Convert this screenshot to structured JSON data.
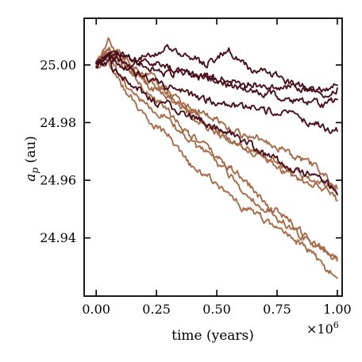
{
  "chart_data": {
    "type": "line",
    "title": "",
    "xlabel": "time (years)",
    "ylabel": "a_p (au)",
    "ylabel_var": "a",
    "ylabel_sub": "p",
    "ylabel_unit": " (au)",
    "x_scale_multiplier": "×10",
    "x_scale_exponent": "6",
    "xlim": [
      -0.05,
      1.02
    ],
    "ylim": [
      24.9198,
      25.0162
    ],
    "x_ticks": [
      0.0,
      0.25,
      0.5,
      0.75,
      1.0
    ],
    "x_tick_labels": [
      "0.00",
      "0.25",
      "0.50",
      "0.75",
      "1.00"
    ],
    "y_ticks": [
      24.94,
      24.96,
      24.98,
      25.0
    ],
    "y_tick_labels": [
      "24.94",
      "24.96",
      "24.98",
      "25.00"
    ],
    "grid": false,
    "x": [
      0.0,
      0.05,
      0.1,
      0.15,
      0.2,
      0.25,
      0.3,
      0.35,
      0.4,
      0.45,
      0.5,
      0.55,
      0.6,
      0.65,
      0.7,
      0.75,
      0.8,
      0.85,
      0.9,
      0.95,
      1.0
    ],
    "series": [
      {
        "color": "#a86b48",
        "values": [
          25.0,
          25.004,
          25.0,
          24.997,
          24.992,
          24.988,
          24.984,
          24.979,
          24.975,
          24.972,
          24.968,
          24.965,
          24.961,
          24.957,
          24.952,
          24.949,
          24.946,
          24.942,
          24.938,
          24.935,
          24.933
        ]
      },
      {
        "color": "#a86b48",
        "values": [
          25.0,
          25.002,
          24.993,
          24.988,
          24.982,
          24.979,
          24.975,
          24.969,
          24.964,
          24.962,
          24.959,
          24.955,
          24.951,
          24.949,
          24.946,
          24.943,
          24.941,
          24.938,
          24.934,
          24.929,
          24.926
        ]
      },
      {
        "color": "#a86b48",
        "values": [
          25.0,
          25.006,
          25.002,
          24.999,
          24.996,
          24.993,
          24.992,
          24.987,
          24.985,
          24.983,
          24.981,
          24.978,
          24.976,
          24.975,
          24.974,
          24.972,
          24.969,
          24.967,
          24.965,
          24.962,
          24.955
        ]
      },
      {
        "color": "#a86b48",
        "values": [
          25.0,
          25.006,
          25.002,
          24.998,
          24.994,
          24.991,
          24.988,
          24.985,
          24.982,
          24.979,
          24.977,
          24.974,
          24.972,
          24.97,
          24.968,
          24.965,
          24.962,
          24.96,
          24.958,
          24.956,
          24.953
        ]
      },
      {
        "color": "#a86b48",
        "values": [
          25.0,
          25.004,
          24.996,
          24.99,
          24.986,
          24.983,
          24.982,
          24.976,
          24.972,
          24.97,
          24.966,
          24.962,
          24.957,
          24.953,
          24.95,
          24.947,
          24.944,
          24.941,
          24.938,
          24.936,
          24.932
        ]
      },
      {
        "color": "#a86b48",
        "values": [
          25.0,
          25.008,
          25.003,
          25.0,
          24.997,
          24.994,
          24.99,
          24.987,
          24.984,
          24.98,
          24.978,
          24.975,
          24.972,
          24.97,
          24.968,
          24.966,
          24.964,
          24.962,
          24.96,
          24.959,
          24.957
        ]
      },
      {
        "color": "#4a0f1c",
        "values": [
          25.0,
          25.004,
          25.004,
          25.002,
          25.003,
          25.004,
          25.006,
          25.004,
          25.003,
          25.0,
          25.003,
          25.005,
          25.001,
          24.998,
          24.997,
          24.996,
          24.994,
          24.993,
          24.991,
          24.99,
          24.992
        ]
      },
      {
        "color": "#4a0f1c",
        "values": [
          25.0,
          25.003,
          25.002,
          25.0,
          25.0,
          24.998,
          24.997,
          24.998,
          24.996,
          24.996,
          24.995,
          24.993,
          24.992,
          24.991,
          24.99,
          24.989,
          24.988,
          24.987,
          24.987,
          24.986,
          24.988
        ]
      },
      {
        "color": "#4a0f1c",
        "values": [
          25.0,
          25.004,
          25.003,
          25.002,
          25.001,
          25.0,
          24.999,
          24.998,
          24.997,
          24.996,
          24.995,
          24.995,
          24.994,
          24.993,
          24.993,
          24.992,
          24.993,
          24.992,
          24.991,
          24.991,
          24.993
        ]
      },
      {
        "color": "#4a0f1c",
        "values": [
          25.0,
          25.003,
          25.0,
          24.998,
          24.996,
          24.994,
          24.992,
          24.991,
          24.989,
          24.988,
          24.987,
          24.986,
          24.985,
          24.985,
          24.984,
          24.984,
          24.983,
          24.981,
          24.98,
          24.978,
          24.977
        ]
      },
      {
        "color": "#4a0f1c",
        "values": [
          25.0,
          25.001,
          24.995,
          24.993,
          24.99,
          24.987,
          24.986,
          24.984,
          24.982,
          24.981,
          24.978,
          24.977,
          24.974,
          24.972,
          24.969,
          24.967,
          24.964,
          24.963,
          24.962,
          24.96,
          24.955
        ]
      }
    ]
  }
}
